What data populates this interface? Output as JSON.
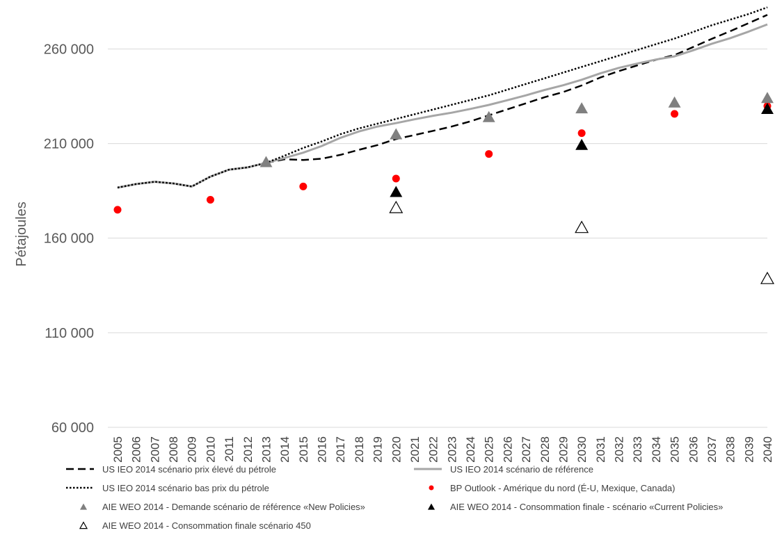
{
  "chart_data": {
    "type": "line",
    "title": "",
    "xlabel": "",
    "ylabel": "Pétajoules",
    "ylim": [
      60000,
      280000
    ],
    "yticks": [
      60000,
      110000,
      160000,
      210000,
      260000
    ],
    "ytick_labels": [
      "60 000",
      "110 000",
      "160 000",
      "210 000",
      "260 000"
    ],
    "x_categories": [
      "2005",
      "2006",
      "2007",
      "2008",
      "2009",
      "2010",
      "2011",
      "2012",
      "2013",
      "2014",
      "2015",
      "2016",
      "2017",
      "2018",
      "2019",
      "2020",
      "2021",
      "2022",
      "2023",
      "2024",
      "2025",
      "2026",
      "2027",
      "2028",
      "2029",
      "2030",
      "2031",
      "2032",
      "2033",
      "2034",
      "2035",
      "2036",
      "2037",
      "2038",
      "2039",
      "2040"
    ],
    "grid": "horizontal",
    "legend_position": "bottom",
    "series": [
      {
        "name": "US IEO 2014 scénario prix élevé du pétrole",
        "style": "dashed",
        "color": "#000000",
        "marker": "none",
        "x": [
          2005,
          2006,
          2007,
          2008,
          2009,
          2010,
          2011,
          2012,
          2013,
          2014,
          2015,
          2016,
          2017,
          2018,
          2019,
          2020,
          2021,
          2022,
          2023,
          2024,
          2025,
          2026,
          2027,
          2028,
          2029,
          2030,
          2031,
          2032,
          2033,
          2034,
          2035,
          2036,
          2037,
          2038,
          2039,
          2040
        ],
        "values": [
          186700,
          188600,
          189800,
          188900,
          187300,
          192500,
          196200,
          197400,
          199800,
          201700,
          201300,
          202000,
          204000,
          206700,
          209200,
          212400,
          214500,
          216700,
          219000,
          221700,
          224900,
          228100,
          231300,
          234500,
          237200,
          240700,
          244900,
          248300,
          251300,
          254300,
          256800,
          261000,
          265300,
          269400,
          273700,
          278000
        ]
      },
      {
        "name": "US IEO 2014 scénario de référence",
        "style": "solid",
        "color": "#a6a6a6",
        "marker": "none",
        "x": [
          2005,
          2006,
          2007,
          2008,
          2009,
          2010,
          2011,
          2012,
          2013,
          2014,
          2015,
          2016,
          2017,
          2018,
          2019,
          2020,
          2021,
          2022,
          2023,
          2024,
          2025,
          2026,
          2027,
          2028,
          2029,
          2030,
          2031,
          2032,
          2033,
          2034,
          2035,
          2036,
          2037,
          2038,
          2039,
          2040
        ],
        "values": [
          186700,
          188600,
          189800,
          188900,
          187300,
          192500,
          196200,
          197400,
          199800,
          202400,
          205200,
          208700,
          213000,
          216400,
          219000,
          220800,
          222800,
          224700,
          226300,
          228300,
          230400,
          232900,
          235500,
          238300,
          240800,
          243700,
          247100,
          250000,
          252300,
          254400,
          256100,
          259300,
          262700,
          265700,
          269200,
          273000
        ]
      },
      {
        "name": "US IEO 2014 scénario bas prix du pétrole",
        "style": "dotted",
        "color": "#000000",
        "marker": "none",
        "x": [
          2005,
          2006,
          2007,
          2008,
          2009,
          2010,
          2011,
          2012,
          2013,
          2014,
          2015,
          2016,
          2017,
          2018,
          2019,
          2020,
          2021,
          2022,
          2023,
          2024,
          2025,
          2026,
          2027,
          2028,
          2029,
          2030,
          2031,
          2032,
          2033,
          2034,
          2035,
          2036,
          2037,
          2038,
          2039,
          2040
        ],
        "values": [
          186700,
          188600,
          189800,
          188900,
          187300,
          192500,
          196200,
          197400,
          199800,
          203600,
          207700,
          211100,
          214900,
          218000,
          220500,
          223000,
          225500,
          228000,
          230500,
          233000,
          235500,
          238500,
          241500,
          244500,
          247500,
          250500,
          253500,
          256500,
          259500,
          262500,
          265500,
          269000,
          272500,
          275500,
          278500,
          282000
        ]
      },
      {
        "name": "BP Outlook - Amérique du nord (É-U, Mexique, Canada)",
        "style": "none",
        "color": "#ff0000",
        "marker": "circle",
        "x": [
          2005,
          2010,
          2015,
          2020,
          2025,
          2030,
          2035,
          2040
        ],
        "values": [
          175000,
          180300,
          187300,
          191500,
          204500,
          215500,
          225700,
          229800
        ]
      },
      {
        "name": "AIE WEO 2014 - Demande scénario de référence «New Policies»",
        "style": "none",
        "color": "#808080",
        "marker": "triangle",
        "x": [
          2013,
          2020,
          2025,
          2030,
          2035,
          2040
        ],
        "values": [
          199900,
          214600,
          223700,
          228300,
          231400,
          233800
        ]
      },
      {
        "name": "AIE WEO 2014 - Consommation finale - scénario «Current Policies»",
        "style": "none",
        "color": "#000000",
        "marker": "triangle",
        "x": [
          2020,
          2030,
          2040
        ],
        "values": [
          184100,
          209000,
          228000
        ]
      },
      {
        "name": "AIE WEO 2014 - Consommation finale scénario 450",
        "style": "none",
        "color": "#000000",
        "marker": "triangle-open",
        "x": [
          2020,
          2030,
          2040
        ],
        "values": [
          175800,
          165300,
          138300
        ]
      }
    ]
  }
}
